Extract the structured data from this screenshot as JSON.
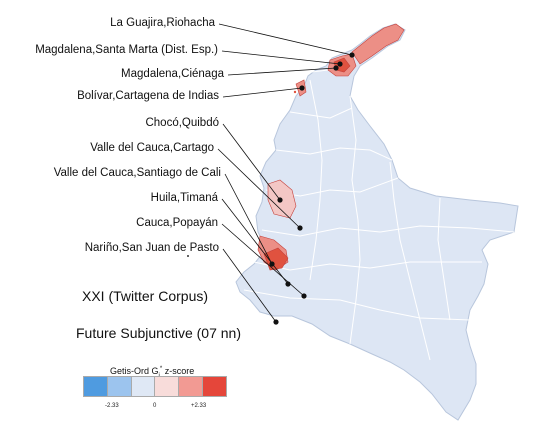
{
  "hotspot_labels": [
    {
      "text": "La Guajira,Riohacha"
    },
    {
      "text": "Magdalena,Santa Marta (Dist. Esp.)"
    },
    {
      "text": "Magdalena,Ciénaga"
    },
    {
      "text": "Bolívar,Cartagena de Indias"
    },
    {
      "text": "Chocó,Quibdó"
    },
    {
      "text": "Valle del Cauca,Cartago"
    },
    {
      "text": "Valle del Cauca,Santiago de Cali"
    },
    {
      "text": "Huila,Timaná"
    },
    {
      "text": "Cauca,Popayán"
    },
    {
      "text": "Nariño,San Juan de Pasto"
    }
  ],
  "map_title": "XXI (Twitter Corpus)",
  "map_subtitle": "Future Subjunctive (07 nn)",
  "legend": {
    "title_prefix": "Getis-Ord G",
    "title_sub": "i",
    "title_sup": "*",
    "title_suffix": " z-score",
    "colors": [
      "#4f9be0",
      "#9cc4ee",
      "#dfe8f5",
      "#f8dcda",
      "#f29a93",
      "#e5463a"
    ],
    "ticks": [
      "-2.33",
      "0",
      "+2.33"
    ]
  },
  "map_colors": {
    "base": "#dde6f4",
    "border": "#b8c6dc",
    "hot_light": "#f3c7c5",
    "hot_mid": "#ec8f86",
    "hot_dark": "#e0523f"
  }
}
